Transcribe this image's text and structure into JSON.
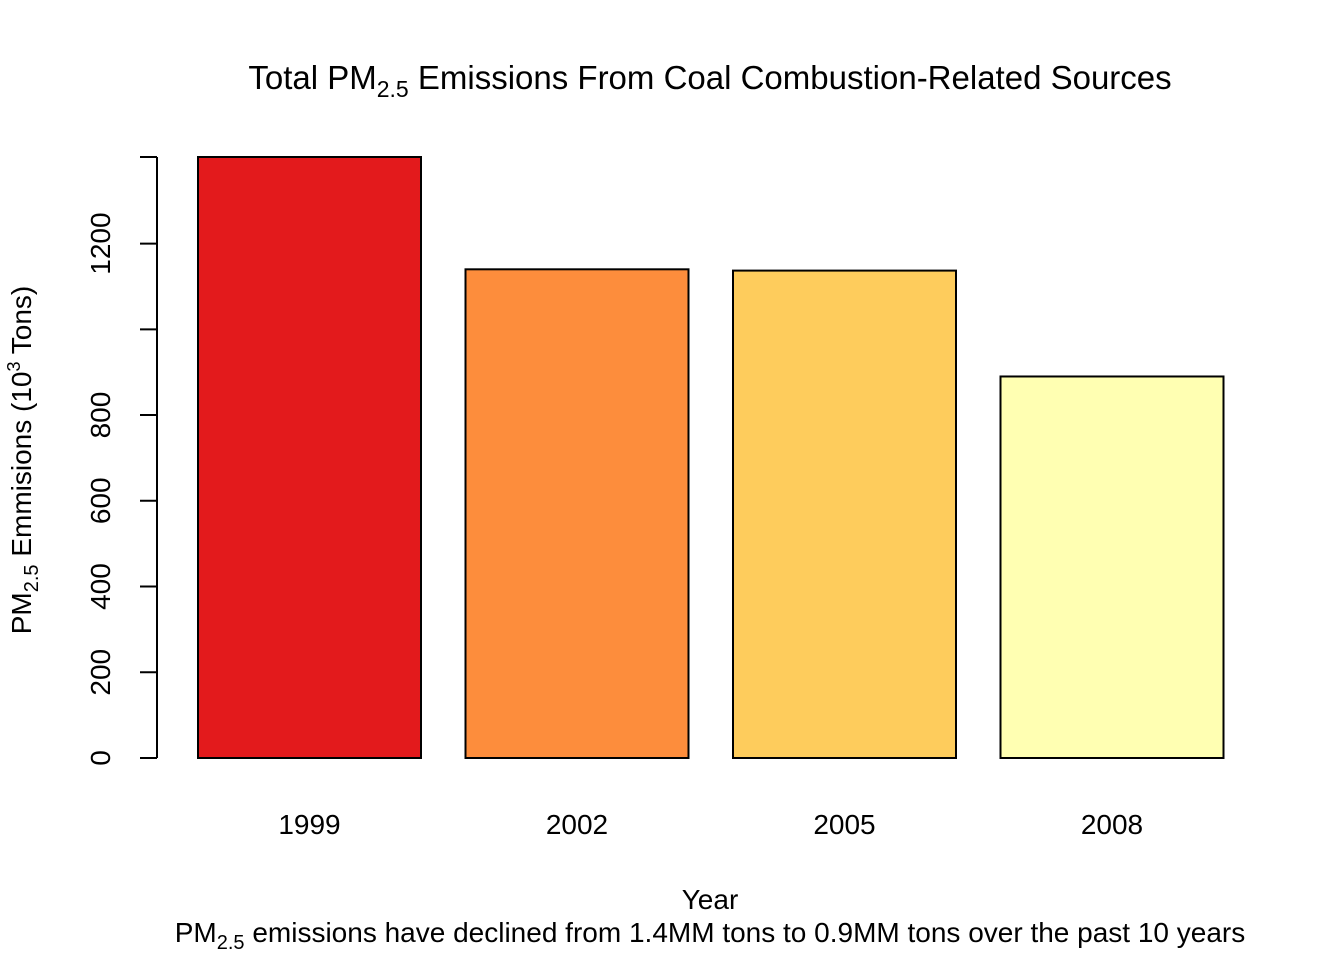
{
  "chart_data": {
    "type": "bar",
    "title": {
      "prefix": "Total PM",
      "subscript": "2.5",
      "suffix": " Emissions From Coal Combustion-Related Sources"
    },
    "xlabel": "Year",
    "ylabel": {
      "prefix": "PM",
      "subscript": "2.5",
      "middle": " Emmisions (10",
      "superscript": "3",
      "suffix": " Tons)"
    },
    "subtitle": {
      "prefix": "PM",
      "subscript": "2.5",
      "suffix": " emissions have declined from 1.4MM tons to 0.9MM tons over the past 10 years"
    },
    "categories": [
      "1999",
      "2002",
      "2005",
      "2008"
    ],
    "values": [
      1402,
      1140,
      1137,
      890
    ],
    "colors": [
      "#E31A1C",
      "#FD8D3C",
      "#FECC5C",
      "#FFFFB2"
    ],
    "yticks": [
      0,
      200,
      400,
      600,
      800,
      1000,
      1200
    ],
    "ytick_labels": [
      "0",
      "200",
      "400",
      "600",
      "800",
      "",
      "1200"
    ],
    "ylim": [
      0,
      1402
    ],
    "grid": false,
    "legend": "none"
  }
}
